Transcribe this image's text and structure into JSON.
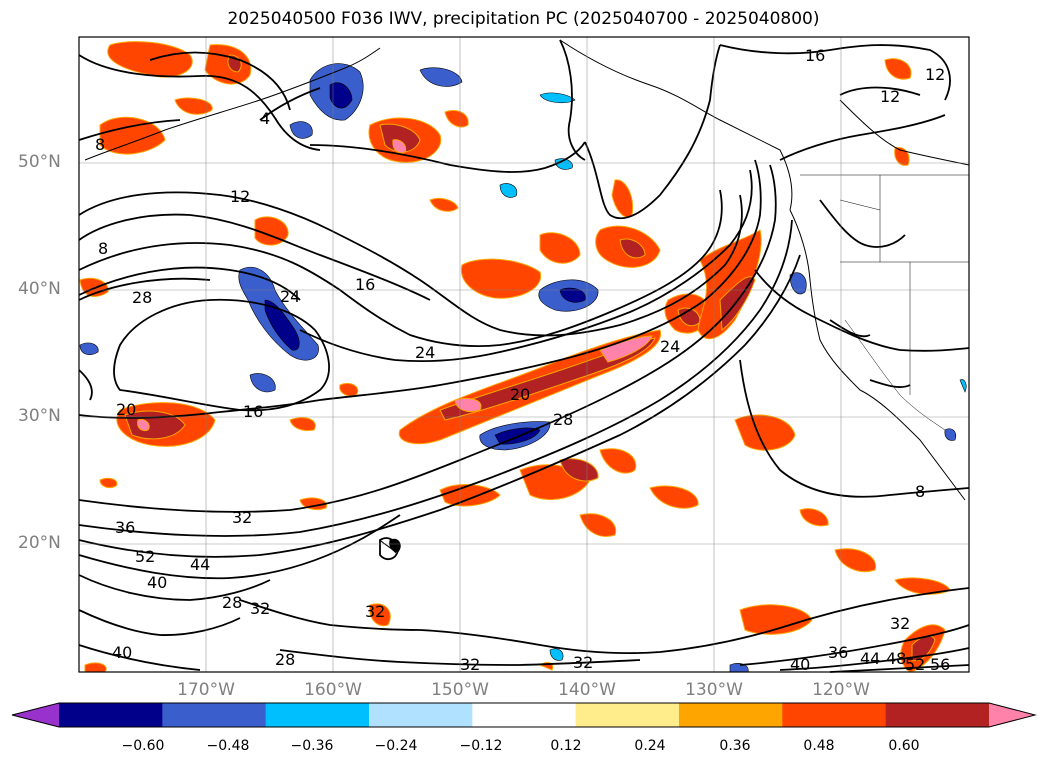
{
  "title": "2025040500 F036 IWV, precipitation PC (2025040700 - 2025040800)",
  "lat_labels": [
    "50°N",
    "40°N",
    "30°N",
    "20°N"
  ],
  "lon_labels": [
    "170°W",
    "160°W",
    "150°W",
    "140°W",
    "130°W",
    "120°W"
  ],
  "contour_labels": [
    "4",
    "8",
    "12",
    "16",
    "20",
    "24",
    "28",
    "32",
    "36",
    "40",
    "44",
    "48",
    "52",
    "56"
  ],
  "colorbar": {
    "ticks": [
      "−0.60",
      "−0.48",
      "−0.36",
      "−0.24",
      "−0.12",
      "0.12",
      "0.24",
      "0.36",
      "0.48",
      "0.60"
    ],
    "colors": [
      "#9932cc",
      "#00008b",
      "#3a5fcd",
      "#00bfff",
      "#b0e2ff",
      "#ffffff",
      "#ffec8b",
      "#ffa500",
      "#ff4500",
      "#b22222",
      "#ff82ab"
    ]
  }
}
